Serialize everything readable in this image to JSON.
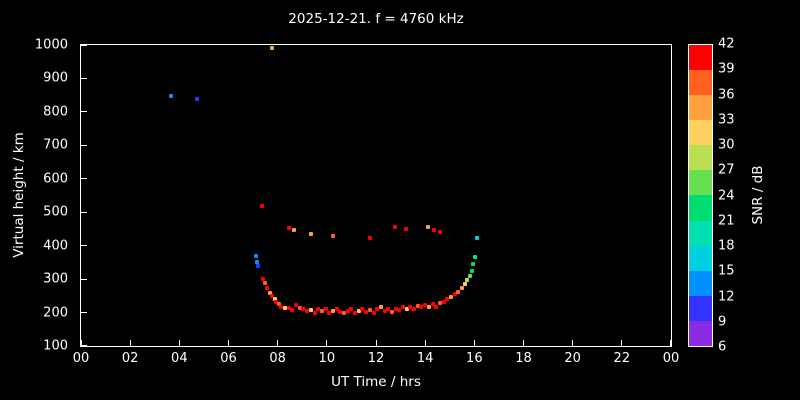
{
  "title": "2025-12-21. f = 4760 kHz",
  "chart_data": {
    "type": "scatter",
    "title": "2025-12-21. f = 4760 kHz",
    "xlabel": "UT Time / hrs",
    "ylabel": "Virtual height / km",
    "xlim": [
      0,
      24
    ],
    "ylim": [
      100,
      1000
    ],
    "x_ticks": [
      0,
      2,
      4,
      6,
      8,
      10,
      12,
      14,
      16,
      18,
      20,
      22,
      24
    ],
    "x_tick_labels": [
      "00",
      "02",
      "04",
      "06",
      "08",
      "10",
      "12",
      "14",
      "16",
      "18",
      "20",
      "22",
      "00"
    ],
    "y_ticks": [
      100,
      200,
      300,
      400,
      500,
      600,
      700,
      800,
      900,
      1000
    ],
    "y_tick_labels": [
      "100",
      "200",
      "300",
      "400",
      "500",
      "600",
      "700",
      "800",
      "900",
      "1000"
    ],
    "grid": false,
    "background_color": "#000000",
    "frame_color": "#ffffff",
    "colorbar": {
      "label": "SNR / dB",
      "min": 6,
      "max": 42,
      "ticks": [
        6,
        9,
        12,
        15,
        18,
        21,
        24,
        27,
        30,
        33,
        36,
        39,
        42
      ],
      "segment_colors_low_to_high": [
        "#8a2be2",
        "#3333ff",
        "#0090ff",
        "#00d0e0",
        "#00e0b0",
        "#00dd70",
        "#66e050",
        "#b8e050",
        "#ffd060",
        "#ffa040",
        "#ff6020",
        "#ff0000"
      ]
    },
    "points_format": [
      "time_hrs",
      "virtual_height_km",
      "snr_db"
    ],
    "points": [
      [
        3.65,
        848,
        14
      ],
      [
        4.7,
        838,
        10
      ],
      [
        7.78,
        992,
        35
      ],
      [
        7.38,
        520,
        41
      ],
      [
        7.1,
        368,
        13
      ],
      [
        7.17,
        352,
        12
      ],
      [
        7.22,
        338,
        9
      ],
      [
        7.42,
        300,
        41
      ],
      [
        7.5,
        288,
        38
      ],
      [
        7.58,
        272,
        41
      ],
      [
        7.68,
        258,
        35
      ],
      [
        7.78,
        250,
        41
      ],
      [
        7.88,
        240,
        32
      ],
      [
        7.95,
        232,
        41
      ],
      [
        8.05,
        225,
        38
      ],
      [
        8.15,
        218,
        41
      ],
      [
        8.3,
        213,
        31
      ],
      [
        8.45,
        215,
        41
      ],
      [
        8.6,
        208,
        41
      ],
      [
        8.75,
        222,
        41
      ],
      [
        8.9,
        215,
        38
      ],
      [
        9.05,
        210,
        41
      ],
      [
        9.2,
        204,
        41
      ],
      [
        9.35,
        208,
        32
      ],
      [
        9.5,
        200,
        41
      ],
      [
        9.65,
        210,
        41
      ],
      [
        9.8,
        204,
        38
      ],
      [
        9.95,
        212,
        41
      ],
      [
        10.1,
        200,
        41
      ],
      [
        10.25,
        206,
        35
      ],
      [
        10.4,
        212,
        41
      ],
      [
        10.55,
        202,
        41
      ],
      [
        10.7,
        198,
        38
      ],
      [
        10.85,
        206,
        41
      ],
      [
        11.0,
        212,
        41
      ],
      [
        11.15,
        200,
        41
      ],
      [
        11.3,
        206,
        32
      ],
      [
        11.45,
        212,
        41
      ],
      [
        11.6,
        202,
        41
      ],
      [
        11.75,
        208,
        38
      ],
      [
        11.9,
        200,
        41
      ],
      [
        12.05,
        210,
        41
      ],
      [
        12.2,
        216,
        35
      ],
      [
        12.35,
        206,
        41
      ],
      [
        12.5,
        212,
        41
      ],
      [
        12.65,
        202,
        38
      ],
      [
        12.8,
        212,
        41
      ],
      [
        12.95,
        208,
        41
      ],
      [
        13.1,
        216,
        41
      ],
      [
        13.25,
        210,
        32
      ],
      [
        13.4,
        218,
        41
      ],
      [
        13.55,
        212,
        41
      ],
      [
        13.7,
        220,
        38
      ],
      [
        13.85,
        216,
        41
      ],
      [
        14.0,
        222,
        41
      ],
      [
        14.15,
        218,
        35
      ],
      [
        14.3,
        226,
        41
      ],
      [
        14.45,
        216,
        41
      ],
      [
        14.6,
        228,
        38
      ],
      [
        14.75,
        232,
        41
      ],
      [
        14.9,
        240,
        41
      ],
      [
        15.05,
        248,
        35
      ],
      [
        15.2,
        255,
        41
      ],
      [
        15.35,
        262,
        38
      ],
      [
        15.5,
        272,
        35
      ],
      [
        15.62,
        284,
        32
      ],
      [
        15.72,
        296,
        29
      ],
      [
        15.82,
        310,
        26
      ],
      [
        15.9,
        325,
        23
      ],
      [
        15.96,
        344,
        23
      ],
      [
        16.02,
        365,
        20
      ],
      [
        16.1,
        422,
        17
      ],
      [
        8.45,
        452,
        41
      ],
      [
        8.68,
        446,
        35
      ],
      [
        9.35,
        436,
        33
      ],
      [
        10.25,
        430,
        38
      ],
      [
        11.75,
        422,
        41
      ],
      [
        12.78,
        456,
        41
      ],
      [
        13.22,
        450,
        41
      ],
      [
        14.12,
        456,
        35
      ],
      [
        14.35,
        447,
        41
      ],
      [
        14.62,
        440,
        41
      ]
    ]
  }
}
